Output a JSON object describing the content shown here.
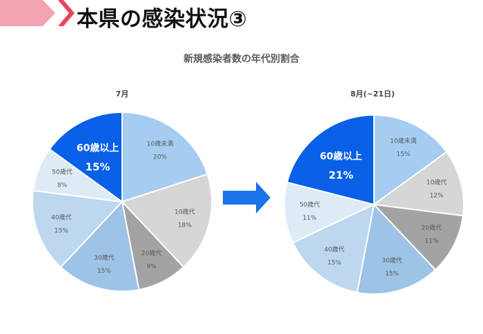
{
  "page": {
    "title": "本県の感染状況③",
    "subtitle": "新規感染者数の年代別割合"
  },
  "colors": {
    "header_pink": "#F4A3B3",
    "header_red": "#E8455E",
    "arrow_blue": "#1A73E8",
    "label_text": "#595959",
    "highlight_text": "#ffffff"
  },
  "chart_data": [
    {
      "type": "pie",
      "title": "7月",
      "start_angle_deg": 0,
      "direction": "clockwise",
      "slices": [
        {
          "label": "10歳未満",
          "value": 20,
          "display": "20%",
          "color": "#A5CDF2"
        },
        {
          "label": "10歳代",
          "value": 18,
          "display": "18%",
          "color": "#D6D6D6"
        },
        {
          "label": "20歳代",
          "value": 9,
          "display": "9%",
          "color": "#A3A3A3"
        },
        {
          "label": "30歳代",
          "value": 15,
          "display": "15%",
          "color": "#9DC3E6"
        },
        {
          "label": "40歳代",
          "value": 15,
          "display": "15%",
          "color": "#BDD7EE"
        },
        {
          "label": "50歳代",
          "value": 8,
          "display": "8%",
          "color": "#DEEBF7"
        },
        {
          "label": "60歳以上",
          "value": 15,
          "display": "15%",
          "color": "#0A60E6",
          "highlight": true
        }
      ]
    },
    {
      "type": "pie",
      "title": "8月(~21日)",
      "start_angle_deg": 0,
      "direction": "clockwise",
      "slices": [
        {
          "label": "10歳未満",
          "value": 15,
          "display": "15%",
          "color": "#A5CDF2"
        },
        {
          "label": "10歳代",
          "value": 12,
          "display": "12%",
          "color": "#D6D6D6"
        },
        {
          "label": "20歳代",
          "value": 11,
          "display": "11%",
          "color": "#A3A3A3"
        },
        {
          "label": "30歳代",
          "value": 15,
          "display": "15%",
          "color": "#9DC3E6"
        },
        {
          "label": "40歳代",
          "value": 15,
          "display": "15%",
          "color": "#BDD7EE"
        },
        {
          "label": "50歳代",
          "value": 11,
          "display": "11%",
          "color": "#DEEBF7"
        },
        {
          "label": "60歳以上",
          "value": 21,
          "display": "21%",
          "color": "#0A60E6",
          "highlight": true
        }
      ]
    }
  ]
}
